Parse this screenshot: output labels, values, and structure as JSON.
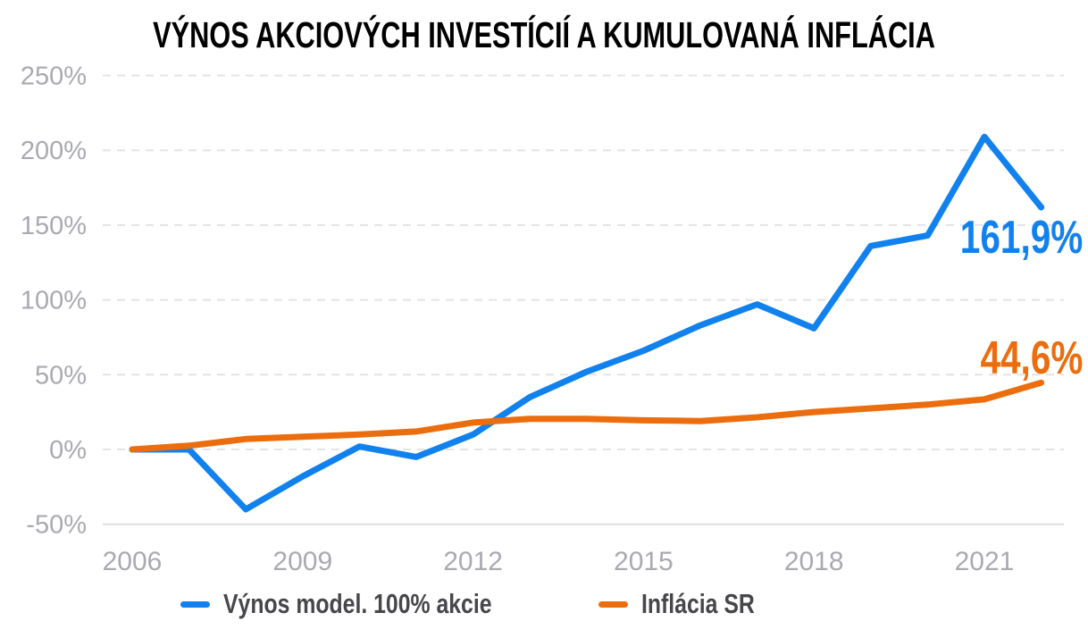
{
  "chart_data": {
    "type": "line",
    "title": "VÝNOS AKCIOVÝCH INVESTÍCIÍ A KUMULOVANÁ INFLÁCIA",
    "xlabel": "",
    "ylabel": "",
    "x": [
      2006,
      2007,
      2008,
      2009,
      2010,
      2011,
      2012,
      2013,
      2014,
      2015,
      2016,
      2017,
      2018,
      2019,
      2020,
      2021,
      2022
    ],
    "ylim": [
      -50,
      250
    ],
    "grid": "horizontal-dashed",
    "legend_position": "bottom",
    "y_ticks": [
      {
        "value": 250,
        "label": "250%"
      },
      {
        "value": 200,
        "label": "200%"
      },
      {
        "value": 150,
        "label": "150%"
      },
      {
        "value": 100,
        "label": "100%"
      },
      {
        "value": 50,
        "label": "50%"
      },
      {
        "value": 0,
        "label": "0%"
      },
      {
        "value": -50,
        "label": "-50%"
      }
    ],
    "x_ticks": [
      {
        "value": 2006,
        "label": "2006"
      },
      {
        "value": 2009,
        "label": "2009"
      },
      {
        "value": 2012,
        "label": "2012"
      },
      {
        "value": 2015,
        "label": "2015"
      },
      {
        "value": 2018,
        "label": "2018"
      },
      {
        "value": 2021,
        "label": "2021"
      }
    ],
    "series": [
      {
        "name": "Výnos model. 100% akcie",
        "color": "#1181ee",
        "end_label": "161,9%",
        "values": [
          0,
          0,
          -40,
          -18,
          2,
          -5,
          10,
          35,
          52,
          66,
          83,
          97,
          81,
          136,
          143,
          209,
          161.9
        ]
      },
      {
        "name": "Inflácia SR",
        "color": "#ec6d0e",
        "end_label": "44,6%",
        "values": [
          0,
          2.5,
          7,
          8.5,
          10,
          12,
          18,
          20.5,
          20.5,
          19.5,
          19,
          21.5,
          25,
          27.5,
          30,
          33.5,
          44.6
        ]
      }
    ],
    "colors": {
      "grid_dashed": "#e3e3e8",
      "grid_solid": "#dfdfe4",
      "tick_text": "#a9aab0"
    }
  }
}
